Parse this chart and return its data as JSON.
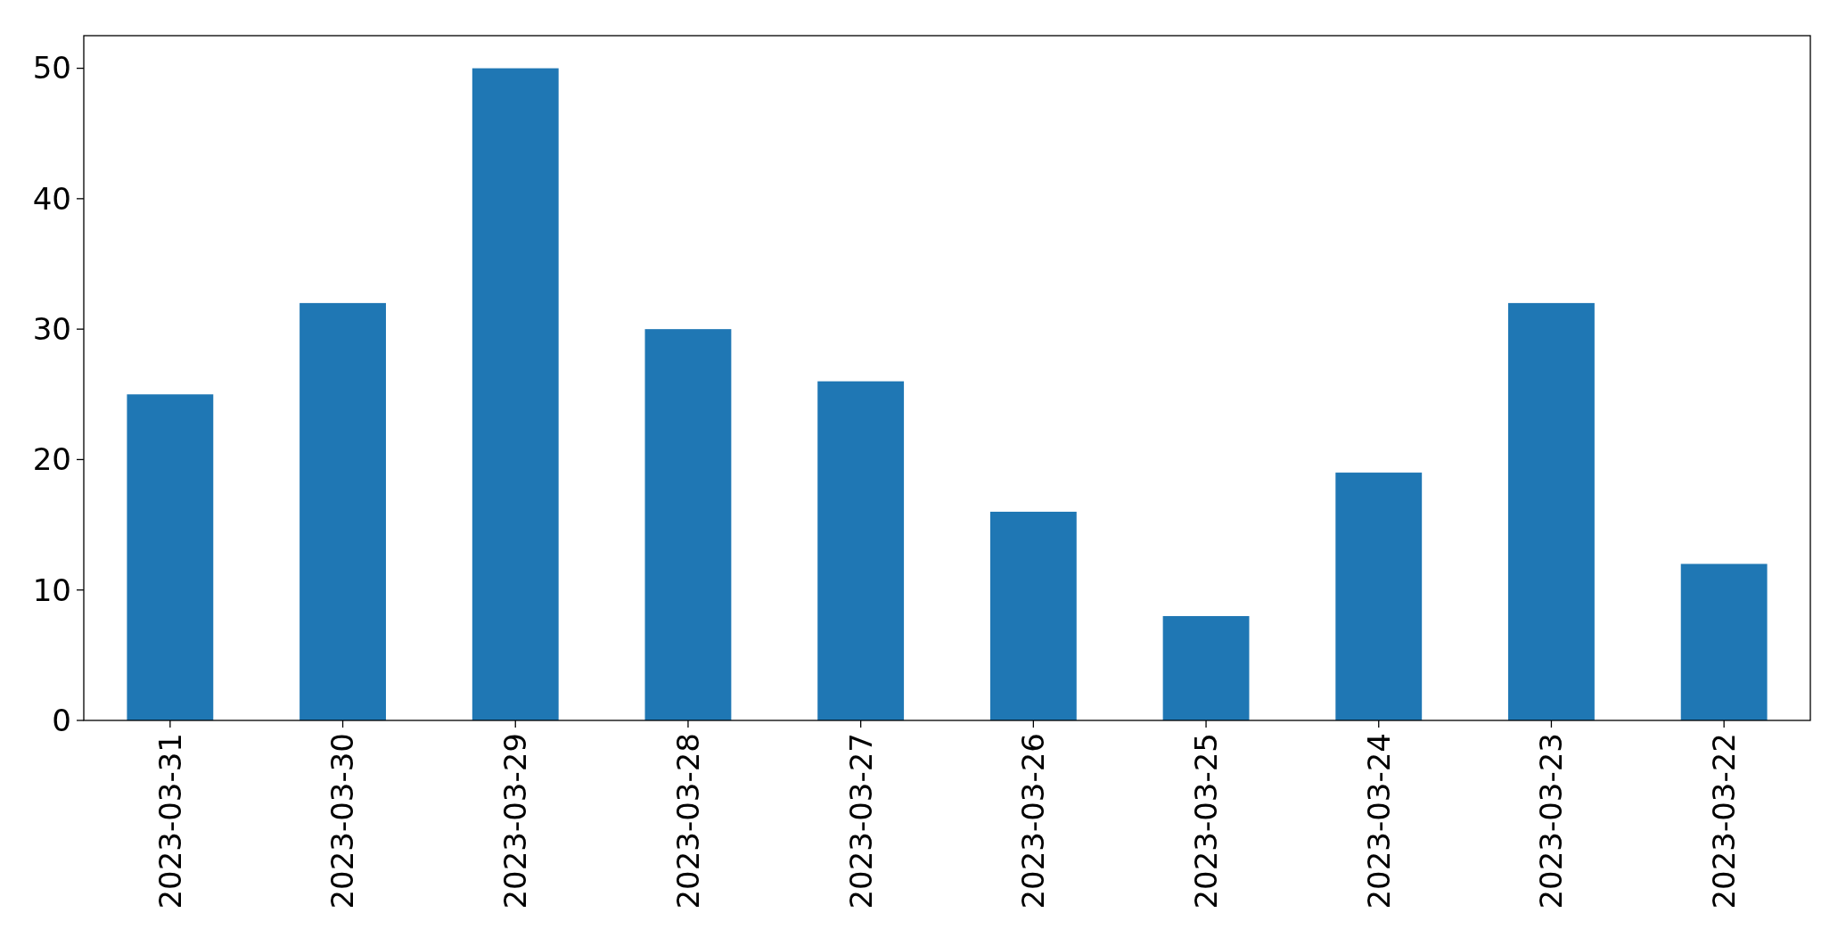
{
  "chart_data": {
    "type": "bar",
    "categories": [
      "2023-03-31",
      "2023-03-30",
      "2023-03-29",
      "2023-03-28",
      "2023-03-27",
      "2023-03-26",
      "2023-03-25",
      "2023-03-24",
      "2023-03-23",
      "2023-03-22"
    ],
    "values": [
      25,
      32,
      50,
      30,
      26,
      16,
      8,
      19,
      32,
      12
    ],
    "color": "#1f77b4",
    "ylim": [
      0,
      52.5
    ],
    "yticks": [
      0,
      10,
      20,
      30,
      40,
      50
    ],
    "grid": false
  }
}
